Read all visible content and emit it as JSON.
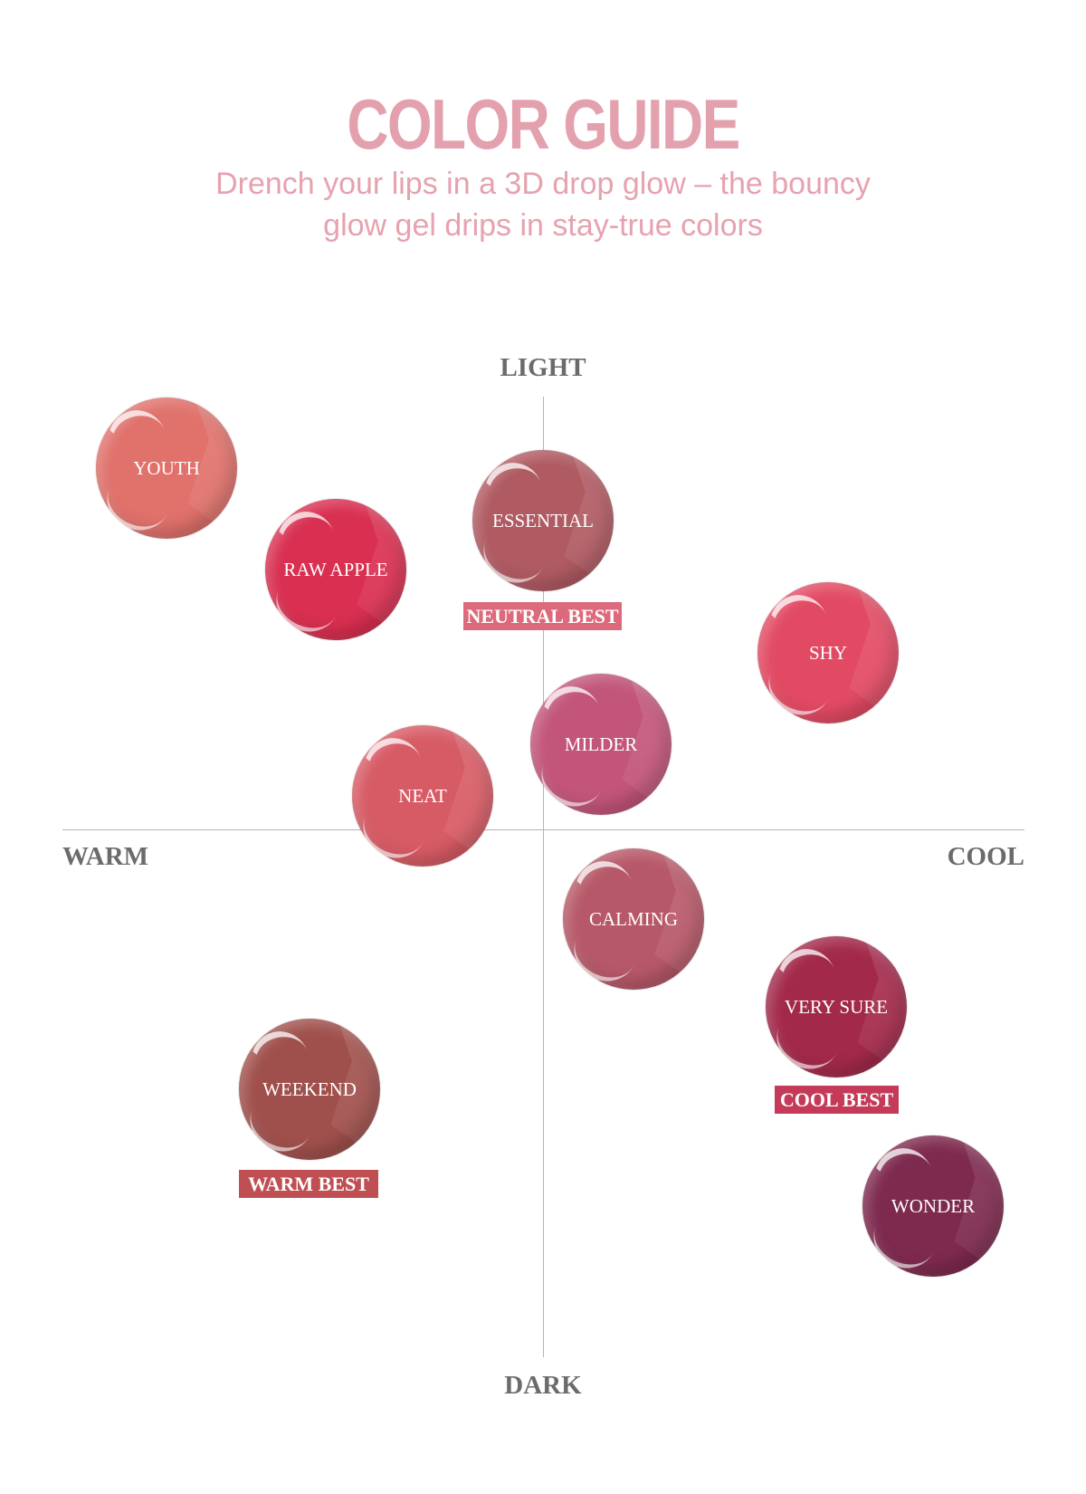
{
  "header": {
    "title": "COLOR GUIDE",
    "subtitle_line1": "Drench your lips in a 3D drop glow – the bouncy",
    "subtitle_line2": "glow gel drips in stay-true colors"
  },
  "chart_data": {
    "type": "scatter",
    "title": "COLOR GUIDE",
    "axes": {
      "top": "LIGHT",
      "bottom": "DARK",
      "left": "WARM",
      "right": "COOL"
    },
    "shades": [
      {
        "name": "YOUTH",
        "color": "#e0716b"
      },
      {
        "name": "RAW APPLE",
        "color": "#d92f50"
      },
      {
        "name": "ESSENTIAL",
        "color": "#b05a62",
        "badge": "NEUTRAL BEST",
        "badge_color": "#dd6a7c"
      },
      {
        "name": "SHY",
        "color": "#e24a63"
      },
      {
        "name": "MILDER",
        "color": "#c25579"
      },
      {
        "name": "NEAT",
        "color": "#d75b65"
      },
      {
        "name": "CALMING",
        "color": "#b75868"
      },
      {
        "name": "VERY SURE",
        "color": "#a3294a",
        "badge": "COOL BEST",
        "badge_color": "#c43a58"
      },
      {
        "name": "WEEKEND",
        "color": "#a0504c",
        "badge": "WARM BEST",
        "badge_color": "#bf4f52"
      },
      {
        "name": "WONDER",
        "color": "#7e2a4e"
      }
    ]
  }
}
